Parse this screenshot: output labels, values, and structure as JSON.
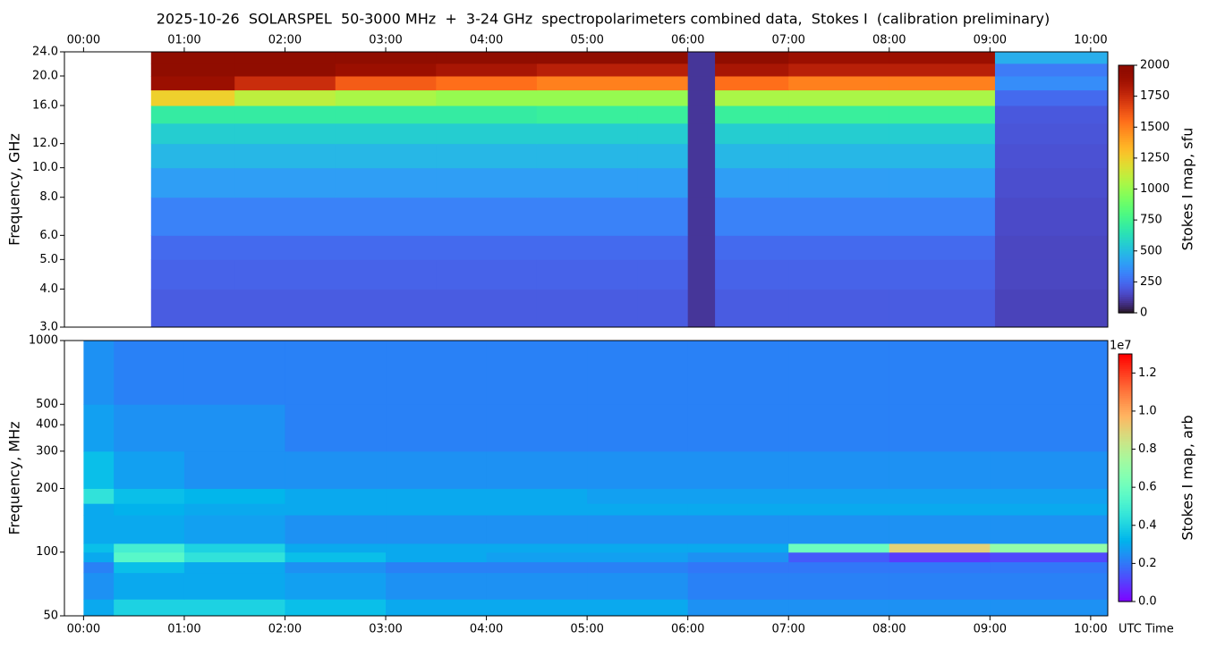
{
  "chart_data": [
    {
      "type": "heatmap",
      "title": "2025-10-26  SOLARSPEL  50-3000 MHz  +  3-24 GHz  spectropolarimeters combined data,  Stokes I  (calibration preliminary)",
      "ylabel": "Frequency, GHz",
      "xlim": [
        -0.19,
        10.17
      ],
      "xtick_position": "top",
      "xticks": [
        {
          "value": 0,
          "label": "00:00"
        },
        {
          "value": 1,
          "label": "01:00"
        },
        {
          "value": 2,
          "label": "02:00"
        },
        {
          "value": 3,
          "label": "03:00"
        },
        {
          "value": 4,
          "label": "04:00"
        },
        {
          "value": 5,
          "label": "05:00"
        },
        {
          "value": 6,
          "label": "06:00"
        },
        {
          "value": 7,
          "label": "07:00"
        },
        {
          "value": 8,
          "label": "08:00"
        },
        {
          "value": 9,
          "label": "09:00"
        },
        {
          "value": 10,
          "label": "10:00"
        }
      ],
      "ylim": [
        3,
        24
      ],
      "yscale": "log",
      "yticks": [
        {
          "value": 3,
          "label": "3.0"
        },
        {
          "value": 4,
          "label": "4.0"
        },
        {
          "value": 5,
          "label": "5.0"
        },
        {
          "value": 6,
          "label": "6.0"
        },
        {
          "value": 8,
          "label": "8.0"
        },
        {
          "value": 10,
          "label": "10.0"
        },
        {
          "value": 12,
          "label": "12.0"
        },
        {
          "value": 16,
          "label": "16.0"
        },
        {
          "value": 20,
          "label": "20.0"
        },
        {
          "value": 24,
          "label": "24.0"
        }
      ],
      "x_edges": [
        0.67,
        1.5,
        2.5,
        3.5,
        4.5,
        5.5,
        6.0,
        6.27,
        7,
        8,
        9.05,
        10.17
      ],
      "y_edges": [
        3,
        4,
        5,
        6,
        8,
        10,
        12,
        14,
        16,
        18,
        20,
        22,
        24
      ],
      "z": [
        [
          210,
          210,
          210,
          210,
          210,
          210,
          100,
          210,
          210,
          210,
          140
        ],
        [
          230,
          230,
          230,
          230,
          230,
          230,
          100,
          230,
          230,
          230,
          150
        ],
        [
          250,
          250,
          250,
          250,
          250,
          250,
          100,
          250,
          250,
          250,
          150
        ],
        [
          320,
          320,
          320,
          320,
          320,
          320,
          100,
          320,
          320,
          320,
          160
        ],
        [
          400,
          400,
          400,
          400,
          400,
          400,
          100,
          400,
          400,
          400,
          170
        ],
        [
          480,
          480,
          480,
          480,
          480,
          480,
          100,
          480,
          480,
          480,
          180
        ],
        [
          560,
          560,
          560,
          560,
          560,
          560,
          100,
          560,
          560,
          560,
          190
        ],
        [
          700,
          700,
          700,
          700,
          720,
          720,
          100,
          720,
          720,
          720,
          200
        ],
        [
          1250,
          1100,
          1050,
          1000,
          1000,
          1000,
          100,
          1050,
          1050,
          1050,
          250
        ],
        [
          1900,
          1750,
          1600,
          1550,
          1500,
          1500,
          100,
          1550,
          1500,
          1500,
          350
        ],
        [
          2000,
          2000,
          1900,
          1850,
          1800,
          1800,
          100,
          1850,
          1800,
          1800,
          300
        ],
        [
          2000,
          2000,
          2000,
          2000,
          2000,
          2000,
          100,
          2000,
          1900,
          1900,
          450
        ]
      ],
      "colormap": "turbo",
      "clim": [
        0,
        2000
      ],
      "cbticks": [
        0,
        250,
        500,
        750,
        1000,
        1250,
        1500,
        1750,
        2000
      ],
      "cblabel": "Stokes I map, sfu"
    },
    {
      "type": "heatmap",
      "ylabel": "Frequency, MHz",
      "xlabel": "UTC Time",
      "xlim": [
        -0.19,
        10.17
      ],
      "xtick_position": "bottom",
      "xticks": [
        {
          "value": 0,
          "label": "00:00"
        },
        {
          "value": 1,
          "label": "01:00"
        },
        {
          "value": 2,
          "label": "02:00"
        },
        {
          "value": 3,
          "label": "03:00"
        },
        {
          "value": 4,
          "label": "04:00"
        },
        {
          "value": 5,
          "label": "05:00"
        },
        {
          "value": 6,
          "label": "06:00"
        },
        {
          "value": 7,
          "label": "07:00"
        },
        {
          "value": 8,
          "label": "08:00"
        },
        {
          "value": 9,
          "label": "09:00"
        },
        {
          "value": 10,
          "label": "10:00"
        }
      ],
      "ylim": [
        50,
        1000
      ],
      "yscale": "log",
      "yticks": [
        50,
        100,
        200,
        300,
        400,
        500,
        1000
      ],
      "x_edges": [
        0,
        0.3,
        1,
        2,
        3,
        4,
        5,
        6,
        7,
        8,
        9,
        10.17
      ],
      "y_edges": [
        50,
        60,
        80,
        90,
        100,
        110,
        150,
        170,
        200,
        300,
        500,
        1000
      ],
      "z": [
        [
          0.3,
          0.4,
          0.4,
          0.35,
          0.3,
          0.3,
          0.3,
          0.25,
          0.25,
          0.25,
          0.25
        ],
        [
          0.25,
          0.3,
          0.3,
          0.28,
          0.25,
          0.25,
          0.25,
          0.22,
          0.22,
          0.22,
          0.22
        ],
        [
          0.22,
          0.35,
          0.3,
          0.25,
          0.22,
          0.22,
          0.22,
          0.2,
          0.2,
          0.2,
          0.2
        ],
        [
          0.3,
          0.55,
          0.45,
          0.35,
          0.3,
          0.28,
          0.28,
          0.25,
          0.15,
          0.1,
          0.12
        ],
        [
          0.35,
          0.5,
          0.4,
          0.3,
          0.3,
          0.3,
          0.3,
          0.3,
          0.6,
          0.9,
          0.7
        ],
        [
          0.3,
          0.3,
          0.28,
          0.25,
          0.25,
          0.25,
          0.25,
          0.25,
          0.25,
          0.25,
          0.25
        ],
        [
          0.3,
          0.32,
          0.3,
          0.3,
          0.3,
          0.3,
          0.3,
          0.3,
          0.3,
          0.3,
          0.3
        ],
        [
          0.45,
          0.35,
          0.33,
          0.3,
          0.3,
          0.3,
          0.28,
          0.28,
          0.28,
          0.28,
          0.28
        ],
        [
          0.35,
          0.28,
          0.25,
          0.25,
          0.25,
          0.25,
          0.25,
          0.25,
          0.25,
          0.25,
          0.25
        ],
        [
          0.28,
          0.25,
          0.25,
          0.22,
          0.22,
          0.22,
          0.22,
          0.22,
          0.22,
          0.22,
          0.22
        ],
        [
          0.25,
          0.22,
          0.22,
          0.22,
          0.22,
          0.22,
          0.22,
          0.22,
          0.22,
          0.22,
          0.22
        ]
      ],
      "colormap": "rainbow",
      "clim": [
        0,
        1.3
      ],
      "cbticks": [
        {
          "value": 0,
          "label": "0.0"
        },
        0.2,
        0.4,
        0.6,
        0.8,
        {
          "value": 1,
          "label": "1.0"
        },
        1.2
      ],
      "cb_multiplier": "1e7",
      "cblabel": "Stokes I map, arb"
    }
  ]
}
